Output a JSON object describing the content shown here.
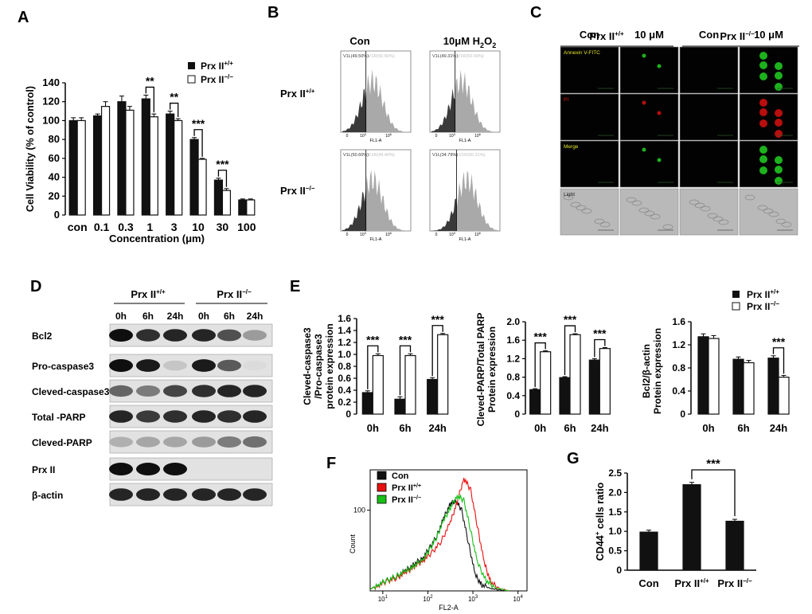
{
  "colors": {
    "black": "#111111",
    "white": "#ffffff",
    "red": "#e81010",
    "green": "#17c017",
    "grey": "#a9a9a9",
    "dark": "#3a3a3a"
  },
  "panel_labels": {
    "a": "A",
    "b": "B",
    "c": "C",
    "d": "D",
    "e": "E",
    "f": "F",
    "g": "G"
  },
  "chart_data": [
    {
      "id": "A",
      "type": "bar",
      "xlabel": "Concentration (μm)",
      "ylabel": "Cell Viability (% of control)",
      "ylim": [
        0,
        140
      ],
      "yticks": [
        "0",
        "20",
        "40",
        "60",
        "80",
        "100",
        "120",
        "140"
      ],
      "categories": [
        "con",
        "0.1",
        "0.3",
        "1",
        "3",
        "10",
        "30",
        "100"
      ],
      "series": [
        {
          "name": "Prx II+/+",
          "values": [
            100,
            105,
            120,
            123,
            107,
            80,
            37,
            16
          ],
          "errors": [
            3,
            2,
            6,
            4,
            3,
            2,
            2,
            1
          ]
        },
        {
          "name": "Prx II−/−",
          "values": [
            100,
            115,
            111,
            104,
            100,
            59,
            26,
            16
          ],
          "errors": [
            3,
            5,
            4,
            3,
            2,
            1,
            2,
            1
          ]
        }
      ],
      "significance": [
        "**",
        "**",
        "***",
        "***"
      ],
      "legend": {
        "wt_base": "Prx II",
        "wt_sup": "+/+",
        "ko_base": "Prx II",
        "ko_sup": "−/−"
      }
    },
    {
      "id": "E1",
      "type": "bar",
      "ylabel": [
        "Cleved-caspase3",
        "/Pro-caspase3",
        "protein expression"
      ],
      "ylim": [
        0,
        1.6
      ],
      "yticks": [
        "0",
        "0.2",
        "0.4",
        "0.6",
        "0.8",
        "1.0",
        "1.2",
        "1.4",
        "1.6"
      ],
      "categories": [
        "0h",
        "6h",
        "24h"
      ],
      "series": [
        {
          "name": "Prx II+/+",
          "values": [
            0.36,
            0.25,
            0.58
          ],
          "errors": [
            0.03,
            0.04,
            0.03
          ]
        },
        {
          "name": "Prx II−/−",
          "values": [
            0.98,
            0.98,
            1.33
          ],
          "errors": [
            0.03,
            0.03,
            0.02
          ]
        }
      ],
      "significance": [
        "***",
        "***",
        "***"
      ]
    },
    {
      "id": "E2",
      "type": "bar",
      "ylabel": [
        "Cleved-PARP/Total PARP",
        "Protein expression"
      ],
      "ylim": [
        0,
        2.0
      ],
      "yticks": [
        "0",
        "0.4",
        "0.8",
        "1.2",
        "1.6",
        "2.0"
      ],
      "categories": [
        "0h",
        "6h",
        "24h"
      ],
      "series": [
        {
          "name": "Prx II+/+",
          "values": [
            0.53,
            0.79,
            1.17
          ],
          "errors": [
            0.02,
            0.02,
            0.03
          ]
        },
        {
          "name": "Prx II−/−",
          "values": [
            1.35,
            1.72,
            1.42
          ],
          "errors": [
            0.02,
            0.02,
            0.02
          ]
        }
      ],
      "significance": [
        "***",
        "***",
        "***"
      ]
    },
    {
      "id": "E3",
      "type": "bar",
      "ylabel": [
        "Bcl2/β-actin",
        "Protein expression"
      ],
      "ylim": [
        0,
        1.6
      ],
      "yticks": [
        "0",
        "0.4",
        "0.8",
        "1.2",
        "1.6"
      ],
      "categories": [
        "0h",
        "6h",
        "24h"
      ],
      "series": [
        {
          "name": "Prx II+/+",
          "values": [
            1.34,
            0.95,
            0.97
          ],
          "errors": [
            0.05,
            0.04,
            0.04
          ]
        },
        {
          "name": "Prx II−/−",
          "values": [
            1.31,
            0.89,
            0.64
          ],
          "errors": [
            0.05,
            0.04,
            0.03
          ]
        }
      ],
      "significance": [
        "***"
      ],
      "legend": {
        "wt_base": "Prx II",
        "wt_sup": "+/+",
        "ko_base": "Prx II",
        "ko_sup": "−/−"
      }
    },
    {
      "id": "G",
      "type": "bar",
      "ylabel": "CD44+ cells ratio",
      "ylabel_base": "CD44",
      "ylabel_sup": "+",
      "ylabel_rest": " cells ratio",
      "ylim": [
        0,
        2.5
      ],
      "yticks": [
        "0",
        "0.5",
        "1.0",
        "1.5",
        "2.0",
        "2.5"
      ],
      "categories": [
        "Con",
        "Prx II+/+",
        "Prx II−/−"
      ],
      "cat_parts": [
        {
          "base": "Con",
          "sup": ""
        },
        {
          "base": "Prx II",
          "sup": "+/+"
        },
        {
          "base": "Prx II",
          "sup": "−/−"
        }
      ],
      "values": [
        0.98,
        2.2,
        1.26
      ],
      "errors": [
        0.05,
        0.06,
        0.05
      ],
      "significance": [
        "***"
      ]
    },
    {
      "id": "F",
      "type": "line",
      "xlabel": "FL2-A",
      "ylabel": "Count",
      "ytick": "100",
      "xticks": [
        "10",
        "10",
        "10",
        "10"
      ],
      "xtick_exps": [
        "1",
        "2",
        "3",
        "4"
      ],
      "series": [
        {
          "name": "Con",
          "color": "#111111",
          "x": [
            0.72,
            0.9,
            1.1,
            1.3,
            1.5,
            1.7,
            1.9,
            2.05,
            2.2,
            2.35,
            2.5,
            2.62,
            2.75,
            2.9,
            3.05,
            3.2,
            3.4,
            3.6,
            3.8
          ],
          "y": [
            2,
            8,
            13,
            18,
            25,
            33,
            42,
            54,
            68,
            90,
            108,
            112,
            100,
            60,
            20,
            7,
            3,
            1,
            0
          ]
        },
        {
          "name": "Prx II+/+",
          "color": "#e81010",
          "x": [
            0.72,
            0.9,
            1.1,
            1.3,
            1.5,
            1.7,
            1.9,
            2.1,
            2.3,
            2.5,
            2.65,
            2.8,
            2.95,
            3.1,
            3.25,
            3.4,
            3.6,
            3.8
          ],
          "y": [
            2,
            7,
            12,
            16,
            22,
            30,
            38,
            48,
            62,
            85,
            110,
            140,
            125,
            80,
            35,
            10,
            3,
            0
          ]
        },
        {
          "name": "Prx II−/−",
          "color": "#17c017",
          "x": [
            0.72,
            0.9,
            1.1,
            1.3,
            1.5,
            1.7,
            1.9,
            2.05,
            2.2,
            2.35,
            2.5,
            2.65,
            2.8,
            2.95,
            3.1,
            3.3,
            3.5,
            3.8
          ],
          "y": [
            2,
            8,
            13,
            18,
            24,
            31,
            40,
            52,
            67,
            87,
            103,
            118,
            112,
            75,
            35,
            12,
            4,
            0
          ]
        }
      ],
      "legend": [
        {
          "base": "Con",
          "sup": ""
        },
        {
          "base": "Prx II",
          "sup": "+/+"
        },
        {
          "base": "Prx II",
          "sup": "−/−"
        }
      ]
    }
  ],
  "panel_b": {
    "col_headers": [
      "Con",
      "10μM H",
      "2",
      "O",
      "2"
    ],
    "row_labels": [
      {
        "base": "Prx II",
        "sup": "+/+"
      },
      {
        "base": "Prx II",
        "sup": "−/−"
      }
    ],
    "gate_left": [
      "V1L(49.50%)",
      "V1L(49.31%)",
      "V1L(50.60%)",
      "V1L(34.79%)"
    ],
    "gate_right": [
      "V1R(50.50%)",
      "V1R(50.69%)",
      "V1R(49.40%)",
      "V1R(65.21%)"
    ],
    "axis": "FL1-A",
    "tick0": "0",
    "tick1": "10",
    "tick1e": "3",
    "tick2": "10",
    "tick2e": "6"
  },
  "panel_c": {
    "groups": [
      {
        "base": "Prx II",
        "sup": "+/+"
      },
      {
        "base": "Prx II",
        "sup": "−/−"
      }
    ],
    "cols": [
      "Con",
      "10 μM",
      "Con",
      "10 μM"
    ],
    "rows": [
      "Annexin V-FITC",
      "PI",
      "Merge",
      "Light"
    ]
  },
  "panel_d": {
    "groups": [
      {
        "base": "Prx II",
        "sup": "+/+"
      },
      {
        "base": "Prx II",
        "sup": "−/−"
      }
    ],
    "lanes": [
      "0h",
      "6h",
      "24h",
      "0h",
      "6h",
      "24h"
    ],
    "rows": [
      {
        "label": "Bcl2",
        "intensity": [
          1,
          0.85,
          0.9,
          0.9,
          0.7,
          0.35
        ]
      },
      {
        "label": "Pro-caspase3",
        "intensity": [
          1,
          0.95,
          0.15,
          0.95,
          0.65,
          0.05
        ]
      },
      {
        "label": "Cleved-caspase3",
        "intensity": [
          0.6,
          0.5,
          0.75,
          0.85,
          0.9,
          0.9
        ]
      },
      {
        "label": "Total -PARP",
        "intensity": [
          0.9,
          0.8,
          0.85,
          0.9,
          0.85,
          0.9
        ]
      },
      {
        "label": "Cleved-PARP",
        "intensity": [
          0.25,
          0.3,
          0.3,
          0.35,
          0.5,
          0.55
        ]
      },
      {
        "label": "Prx II",
        "intensity": [
          1,
          1,
          1,
          0,
          0,
          0
        ]
      },
      {
        "label": "β-actin",
        "intensity": [
          0.9,
          0.9,
          0.9,
          0.9,
          0.9,
          0.9
        ]
      }
    ]
  }
}
